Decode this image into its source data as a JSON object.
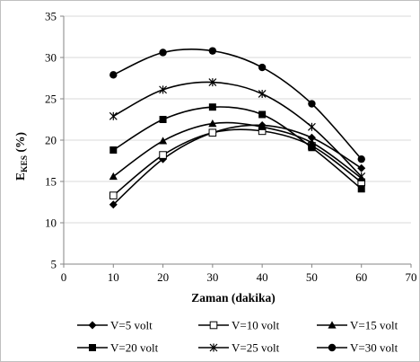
{
  "chart_data": {
    "type": "line",
    "xlabel": "Zaman (dakika)",
    "ylabel_main": "E",
    "ylabel_sub": "KES",
    "ylabel_unit": " (%)",
    "xlim": [
      0,
      70
    ],
    "ylim": [
      5,
      35
    ],
    "xticks": [
      0,
      10,
      20,
      30,
      40,
      50,
      60,
      70
    ],
    "yticks": [
      5,
      10,
      15,
      20,
      25,
      30,
      35
    ],
    "grid": "horizontal",
    "legend_position": "bottom",
    "x": [
      10,
      20,
      30,
      40,
      50,
      60
    ],
    "series": [
      {
        "name": "V=5 volt",
        "marker": "diamond",
        "values": [
          12.2,
          17.7,
          20.9,
          21.8,
          20.3,
          16.6
        ]
      },
      {
        "name": "V=10 volt",
        "marker": "square-open",
        "values": [
          13.3,
          18.2,
          20.9,
          21.1,
          19.3,
          14.9
        ]
      },
      {
        "name": "V=15 volt",
        "marker": "triangle",
        "values": [
          15.6,
          19.9,
          22.0,
          21.6,
          19.7,
          15.4
        ]
      },
      {
        "name": "V=20 volt",
        "marker": "square-filled",
        "values": [
          18.8,
          22.5,
          24.0,
          23.1,
          19.1,
          14.1
        ]
      },
      {
        "name": "V=25 volt",
        "marker": "asterisk",
        "values": [
          22.9,
          26.1,
          27.0,
          25.6,
          21.6,
          15.6
        ]
      },
      {
        "name": "V=30 volt",
        "marker": "circle",
        "values": [
          27.9,
          30.6,
          30.8,
          28.8,
          24.4,
          17.7
        ]
      }
    ]
  }
}
